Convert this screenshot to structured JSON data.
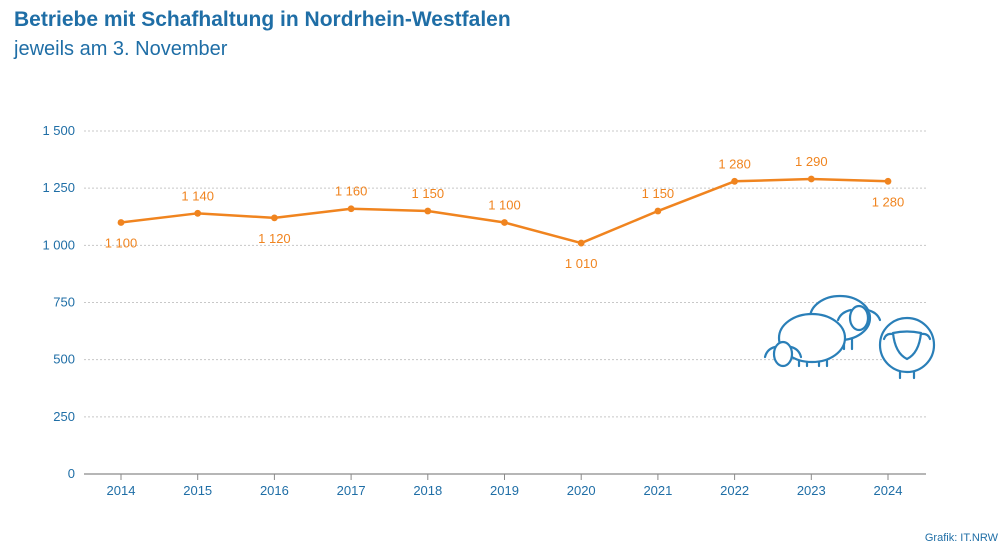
{
  "header": {
    "title": "Betriebe mit Schafhaltung in Nordrhein-Westfalen",
    "subtitle": "jeweils am 3. November"
  },
  "source": "Grafik: IT.NRW",
  "colors": {
    "line": "#f0841f",
    "text": "#1f6ea6",
    "grid": "#c8c8c8",
    "axis": "#8a8a8a",
    "illustration": "#2a7fb8"
  },
  "illustration_icon": "sheep-group-icon",
  "chart_data": {
    "type": "line",
    "title": "Betriebe mit Schafhaltung in Nordrhein-Westfalen",
    "subtitle": "jeweils am 3. November",
    "x": [
      "2014",
      "2015",
      "2016",
      "2017",
      "2018",
      "2019",
      "2020",
      "2021",
      "2022",
      "2023",
      "2024"
    ],
    "series": [
      {
        "values": [
          1100,
          1140,
          1120,
          1160,
          1150,
          1100,
          1010,
          1150,
          1280,
          1290,
          1280
        ],
        "labels": [
          "1 100",
          "1 140",
          "1 120",
          "1 160",
          "1 150",
          "1 100",
          "1 010",
          "1 150",
          "1 280",
          "1 290",
          "1 280"
        ]
      }
    ],
    "ylim": [
      0,
      1500
    ],
    "yticks": [
      0,
      250,
      500,
      750,
      1000,
      1250,
      1500
    ],
    "ytick_labels": [
      "0",
      "250",
      "500",
      "750",
      "1 000",
      "1 250",
      "1 500"
    ],
    "grid": true,
    "xlabel": "",
    "ylabel": ""
  }
}
